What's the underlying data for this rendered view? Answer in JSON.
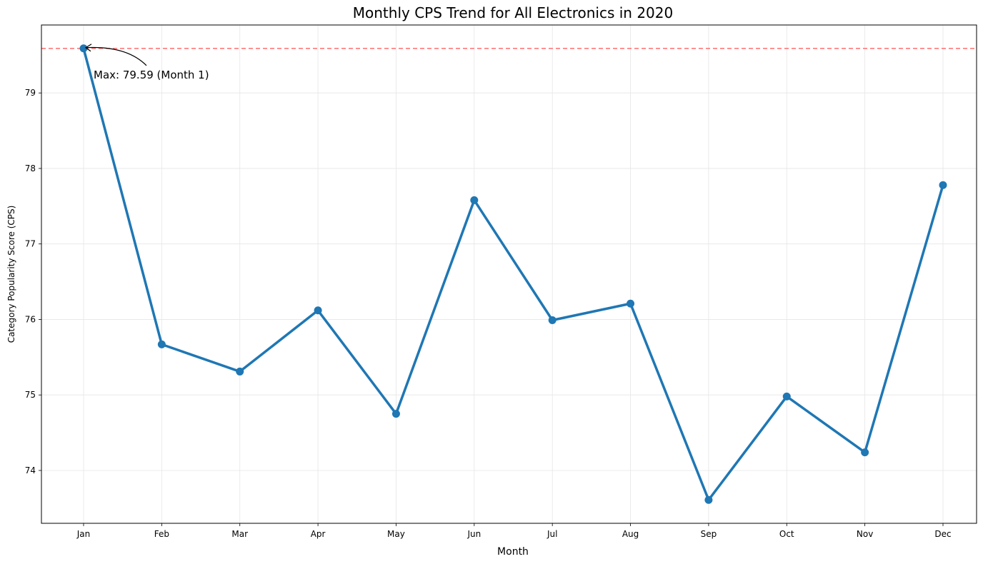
{
  "chart_data": {
    "type": "line",
    "title": "Monthly CPS Trend for All Electronics in 2020",
    "xlabel": "Month",
    "ylabel": "Category Popularity Score (CPS)",
    "categories": [
      "Jan",
      "Feb",
      "Mar",
      "Apr",
      "May",
      "Jun",
      "Jul",
      "Aug",
      "Sep",
      "Oct",
      "Nov",
      "Dec"
    ],
    "series": [
      {
        "name": "",
        "color": "#1f77b4",
        "values": [
          79.59,
          75.67,
          75.31,
          76.12,
          74.75,
          77.58,
          75.99,
          76.21,
          73.61,
          74.98,
          74.24,
          77.78
        ]
      }
    ],
    "ylim": [
      73.3,
      79.9
    ],
    "yticks": [
      "74",
      "75",
      "76",
      "77",
      "78",
      "79"
    ],
    "grid": true,
    "reference_line": {
      "value": 79.59,
      "color": "#ff6b6b",
      "style": "dashed"
    },
    "annotation": {
      "text": "Max: 79.59 (Month 1)",
      "category": "Jan",
      "value": 79.59
    }
  }
}
